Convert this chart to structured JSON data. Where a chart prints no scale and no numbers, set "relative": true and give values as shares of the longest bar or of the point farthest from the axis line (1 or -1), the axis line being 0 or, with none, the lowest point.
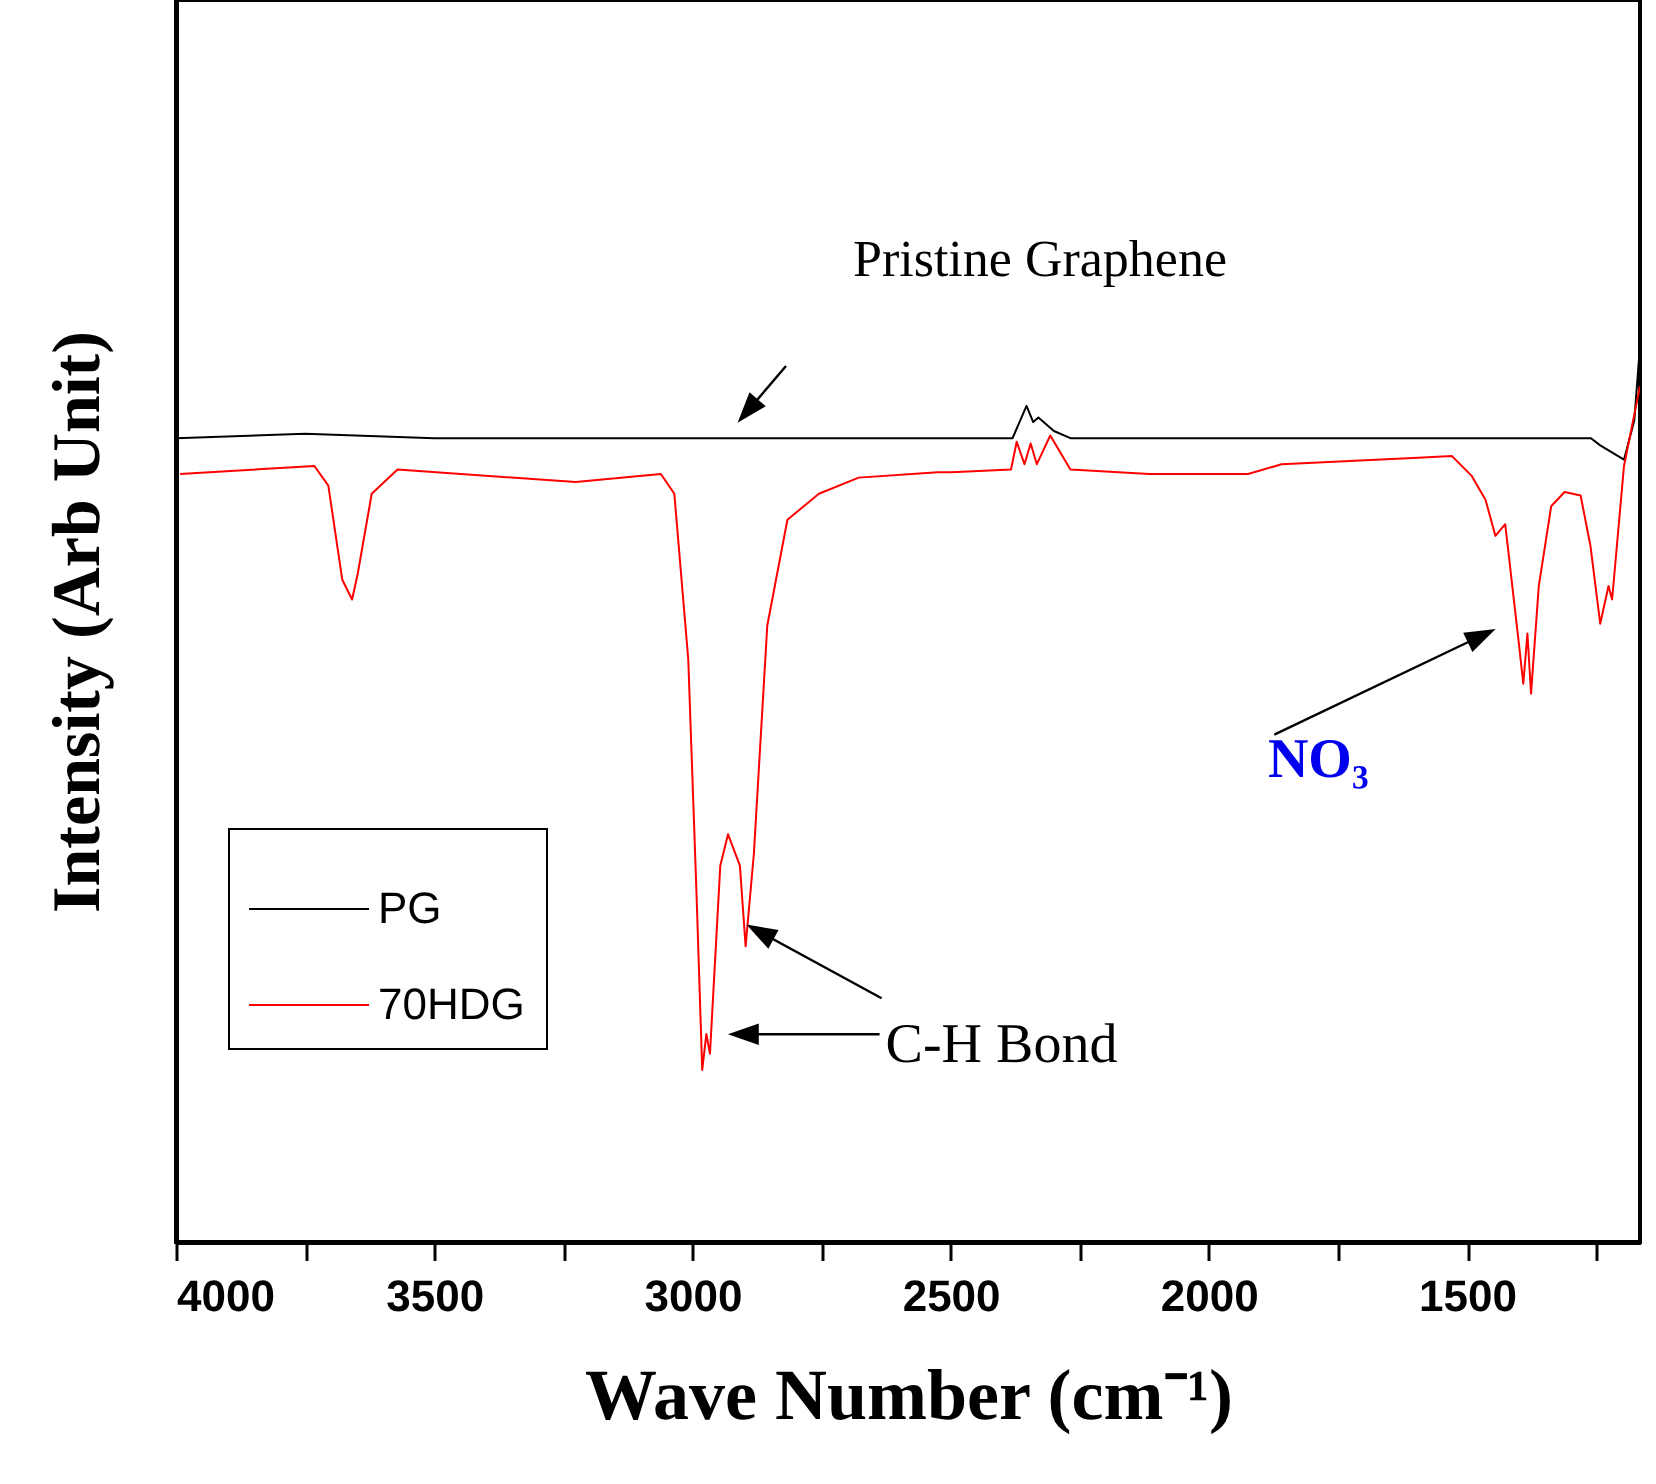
{
  "chart_data": {
    "type": "line",
    "relative": true,
    "xlabel": "Wave Number (cm⁻¹)",
    "ylabel": "Intensity (Arb Unit)",
    "xlim": [
      4000,
      1165
    ],
    "xticks": [
      4000,
      {
        "value": 3750,
        "label": null
      },
      3500,
      {
        "value": 3250,
        "label": null
      },
      3000,
      {
        "value": 2750,
        "label": null
      },
      2500,
      {
        "value": 2250,
        "label": null
      },
      2000,
      {
        "value": 1750,
        "label": null
      },
      1500,
      {
        "value": 1250,
        "label": null
      }
    ],
    "legend": "bottom left",
    "line_style": "solid",
    "annotations": [
      "Pristine Graphene",
      {
        "text": "C-H Bond",
        "x": 2897,
        "y": 0.33
      },
      {
        "text": "NO₃",
        "x": 1420,
        "y": 0.66
      }
    ],
    "series": [
      {
        "name": "PG",
        "color": "#000000",
        "x": [
          4000,
          3750,
          3500,
          3000,
          2500,
          2380,
          2353,
          2340,
          2330,
          2300,
          2268,
          2000,
          1500,
          1260,
          1242,
          1196,
          1176,
          1165
        ],
        "values": [
          0.897,
          0.902,
          0.897,
          0.897,
          0.897,
          0.897,
          0.933,
          0.915,
          0.92,
          0.905,
          0.897,
          0.897,
          0.897,
          0.897,
          0.889,
          0.873,
          0.917,
          1.0
        ]
      },
      {
        "name": "70HDG",
        "color": "#ff0000",
        "x": [
          3992,
          3732,
          3705,
          3678,
          3659,
          3648,
          3621,
          3571,
          3226,
          3061,
          3035,
          3008,
          2992,
          2981,
          2973,
          2966,
          2946,
          2931,
          2908,
          2897,
          2881,
          2855,
          2816,
          2755,
          2678,
          2525,
          2498,
          2383,
          2372,
          2357,
          2345,
          2333,
          2307,
          2268,
          2115,
          1924,
          1859,
          1605,
          1529,
          1491,
          1464,
          1445,
          1426,
          1399,
          1391,
          1383,
          1376,
          1361,
          1337,
          1311,
          1280,
          1261,
          1242,
          1226,
          1219,
          1196,
          1165
        ],
        "values": [
          0.857,
          0.866,
          0.844,
          0.739,
          0.717,
          0.746,
          0.835,
          0.862,
          0.848,
          0.857,
          0.835,
          0.65,
          0.388,
          0.192,
          0.232,
          0.21,
          0.42,
          0.455,
          0.42,
          0.33,
          0.433,
          0.688,
          0.806,
          0.835,
          0.853,
          0.859,
          0.859,
          0.862,
          0.893,
          0.868,
          0.891,
          0.868,
          0.9,
          0.862,
          0.857,
          0.857,
          0.868,
          0.875,
          0.877,
          0.855,
          0.828,
          0.788,
          0.801,
          0.665,
          0.623,
          0.679,
          0.612,
          0.732,
          0.821,
          0.837,
          0.833,
          0.777,
          0.69,
          0.732,
          0.717,
          0.866,
          0.955
        ]
      }
    ]
  }
}
